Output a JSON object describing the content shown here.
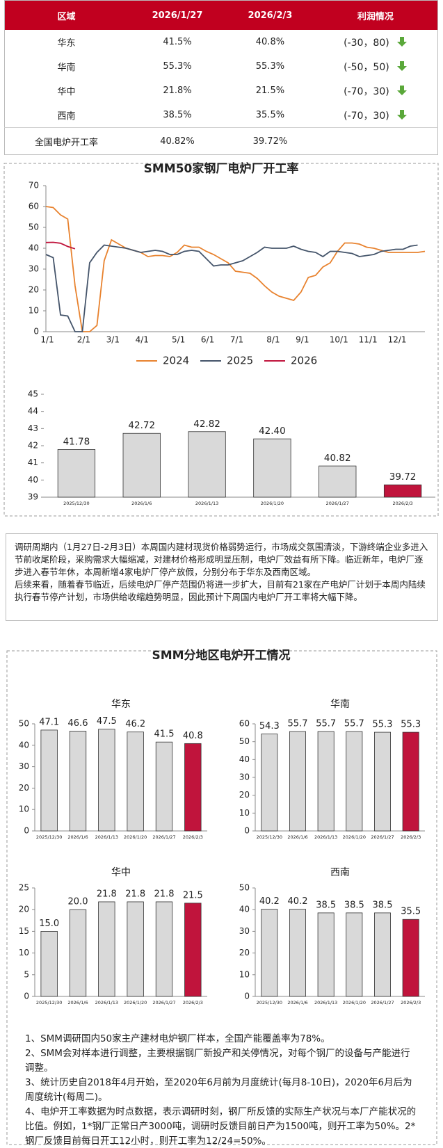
{
  "table": {
    "header": [
      "区域",
      "2026/1/27",
      "2026/2/3",
      "利润情况"
    ],
    "rows": [
      [
        "华东",
        "41.5%",
        "40.8%",
        "(-30，80)"
      ],
      [
        "华南",
        "55.3%",
        "55.3%",
        "(-50，50)"
      ],
      [
        "华中",
        "21.8%",
        "21.5%",
        "(-70，30)"
      ],
      [
        "西南",
        "38.5%",
        "35.5%",
        "(-70，30)"
      ],
      [
        "全国电炉开工率",
        "40.82%",
        "39.72%"
      ]
    ]
  },
  "chart_data": [
    {
      "type": "line",
      "title": "SMM50家钢厂电炉厂开工率",
      "categories": [
        "1/1",
        null,
        null,
        null,
        null,
        "2/1",
        null,
        null,
        null,
        "3/1",
        null,
        null,
        null,
        "4/1",
        null,
        null,
        null,
        null,
        "5/1",
        null,
        null,
        null,
        "6/1",
        null,
        null,
        null,
        "7/1",
        null,
        null,
        null,
        null,
        "8/1",
        null,
        null,
        null,
        "9/1",
        null,
        null,
        null,
        null,
        "10/1",
        null,
        null,
        null,
        "11/1",
        null,
        null,
        null,
        "12/1",
        null,
        null,
        null,
        null
      ],
      "series": [
        {
          "name": "2024",
          "color": "#e8822e",
          "values": [
            60,
            59.5,
            56,
            54,
            22,
            0,
            0,
            3,
            34,
            44,
            42,
            40,
            39,
            38,
            36,
            36.5,
            36.5,
            36,
            38,
            41.5,
            40.5,
            40.5,
            38.5,
            37,
            35,
            33,
            29,
            28.5,
            28,
            25.5,
            22,
            19,
            17,
            16,
            15,
            19,
            26,
            27,
            31,
            33,
            38.5,
            42.5,
            42.5,
            42,
            40.5,
            40,
            39,
            38,
            38,
            38,
            38,
            38,
            38.5
          ]
        },
        {
          "name": "2025",
          "color": "#44546a",
          "values": [
            37,
            35.5,
            8,
            7.5,
            0,
            0,
            33,
            38,
            41.5,
            41,
            40.5,
            40,
            39,
            38,
            38.5,
            39,
            38.5,
            37,
            37,
            38.5,
            39,
            38.5,
            35,
            31.5,
            32,
            32,
            33,
            34,
            36,
            38,
            40.5,
            40,
            40,
            40,
            41,
            39.5,
            38.5,
            38,
            36,
            38.5,
            38.5,
            38,
            37.5,
            36,
            36.5,
            37,
            38.5,
            39,
            39.5,
            39.5,
            41,
            41.5,
            null
          ]
        },
        {
          "name": "2026",
          "color": "#c0143c",
          "values": [
            42.72,
            42.82,
            42.4,
            40.82,
            39.72,
            null,
            null,
            null,
            null,
            null,
            null,
            null,
            null,
            null,
            null,
            null,
            null,
            null,
            null,
            null,
            null,
            null,
            null,
            null,
            null,
            null,
            null,
            null,
            null,
            null,
            null,
            null,
            null,
            null,
            null,
            null,
            null,
            null,
            null,
            null,
            null,
            null,
            null,
            null,
            null,
            null,
            null,
            null,
            null,
            null,
            null,
            null,
            null
          ]
        }
      ],
      "ylim": [
        0,
        70
      ],
      "yticks": [
        0,
        10,
        20,
        30,
        40,
        50,
        60,
        70
      ]
    },
    {
      "type": "bar",
      "categories": [
        "2025/12/30",
        "2026/1/6",
        "2026/1/13",
        "2026/1/20",
        "2026/1/27",
        "2026/2/3"
      ],
      "values": [
        41.78,
        42.72,
        42.82,
        42.4,
        40.82,
        39.72
      ],
      "value_labels": [
        "41.78",
        "42.72",
        "42.82",
        "42.40",
        "40.82",
        "39.72"
      ],
      "colors": [
        "#d9d9d9",
        "#d9d9d9",
        "#d9d9d9",
        "#d9d9d9",
        "#d9d9d9",
        "#c0143c"
      ],
      "ylim": [
        39,
        45
      ],
      "yticks": [
        39,
        40,
        41,
        42,
        43,
        44,
        45
      ]
    },
    {
      "type": "bar",
      "title": "华东",
      "categories": [
        "2025/12/30",
        "2026/1/6",
        "2026/1/13",
        "2026/1/20",
        "2026/1/27",
        "2026/2/3"
      ],
      "values": [
        47.1,
        46.6,
        47.5,
        46.2,
        41.5,
        40.8
      ],
      "colors": [
        "#d9d9d9",
        "#d9d9d9",
        "#d9d9d9",
        "#d9d9d9",
        "#d9d9d9",
        "#c0143c"
      ],
      "ylim": [
        0,
        50
      ],
      "yticks": [
        0,
        10,
        20,
        30,
        40,
        50
      ]
    },
    {
      "type": "bar",
      "title": "华南",
      "categories": [
        "2025/12/30",
        "2026/1/6",
        "2026/1/13",
        "2026/1/20",
        "2026/1/27",
        "2026/2/3"
      ],
      "values": [
        54.3,
        55.7,
        55.7,
        55.7,
        55.3,
        55.3
      ],
      "colors": [
        "#d9d9d9",
        "#d9d9d9",
        "#d9d9d9",
        "#d9d9d9",
        "#d9d9d9",
        "#c0143c"
      ],
      "ylim": [
        0,
        60
      ],
      "yticks": [
        0,
        10,
        20,
        30,
        40,
        50,
        60
      ]
    },
    {
      "type": "bar",
      "title": "华中",
      "categories": [
        "2025/12/30",
        "2026/1/6",
        "2026/1/13",
        "2026/1/20",
        "2026/1/27",
        "2026/2/3"
      ],
      "values": [
        15,
        20,
        21.8,
        21.8,
        21.8,
        21.5
      ],
      "value_labels": [
        "15.0",
        "20.0",
        "21.8",
        "21.8",
        "21.8",
        "21.5"
      ],
      "colors": [
        "#d9d9d9",
        "#d9d9d9",
        "#d9d9d9",
        "#d9d9d9",
        "#d9d9d9",
        "#c0143c"
      ],
      "ylim": [
        0,
        25
      ],
      "yticks": [
        0,
        5,
        10,
        15,
        20,
        25
      ]
    },
    {
      "type": "bar",
      "title": "西南",
      "categories": [
        "2025/12/30",
        "2026/1/6",
        "2026/1/13",
        "2026/1/20",
        "2026/1/27",
        "2026/2/3"
      ],
      "values": [
        40.2,
        40.2,
        38.5,
        38.5,
        38.5,
        35.5
      ],
      "colors": [
        "#d9d9d9",
        "#d9d9d9",
        "#d9d9d9",
        "#d9d9d9",
        "#d9d9d9",
        "#c0143c"
      ],
      "ylim": [
        0,
        50
      ],
      "yticks": [
        0,
        10,
        20,
        30,
        40,
        50
      ]
    }
  ],
  "summary": {
    "paragraphs": [
      "调研周期内（1月27日-2月3日）本周国内建材现货价格弱势运行，市场成交氛围清淡，下游终端企业多进入节前收尾阶段，采购需求大幅缩减，对建材价格形成明显压制，电炉厂效益有所下降。临近新年，电炉厂逐步进入春节年休，本周新增4家电炉厂停产放假，分别分布于华东及西南区域。",
      "后续来看，随着春节临近，后续电炉厂停产范围仍将进一步扩大，目前有21家在产电炉厂计划于本周内陆续执行春节停产计划，市场供给收缩趋势明显，因此预计下周国内电炉厂开工率将大幅下降。"
    ]
  },
  "section2": {
    "title": "SMM分地区电炉开工情况"
  },
  "notes": [
    "1、SMM调研国内50家主产建材电炉钢厂样本，全国产能覆盖率为78%。",
    "2、SMM会对样本进行调整，主要根据钢厂新投产和关停情况，对每个钢厂的设备与产能进行调整。",
    "3、统计历史自2018年4月开始，至2020年6月前为月度统计(每月8-10日)，2020年6月后为周度统计(每周二)。",
    "4、电炉开工率数据为时点数据，表示调研时刻，钢厂所反馈的实际生产状况与本厂产能状况的比值。例如，1*钢厂正常日产3000吨，调研时反馈目前日产为1500吨，则开工率为50%。2*钢厂反馈目前每日开工12小时，则开工率为12/24=50%。"
  ]
}
